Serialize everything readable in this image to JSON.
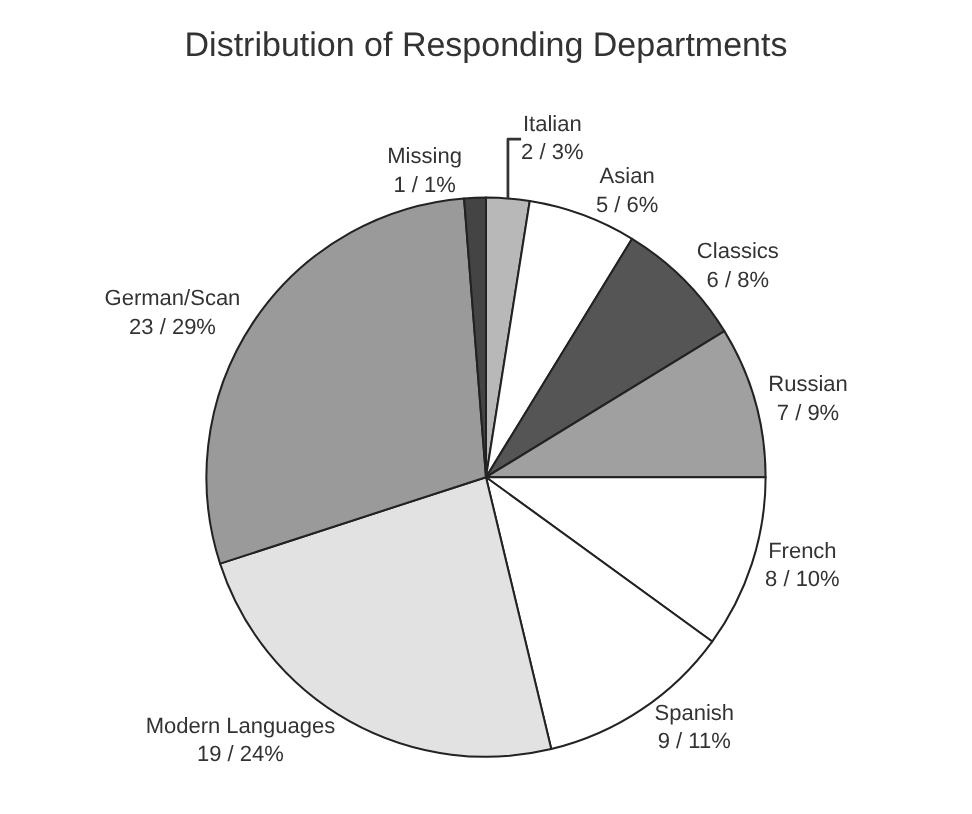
{
  "chart_data": {
    "type": "pie",
    "title": "Distribution of Responding Departments",
    "categories": [
      "Italian",
      "Asian",
      "Classics",
      "Russian",
      "French",
      "Spanish",
      "Modern Languages",
      "German/Scan",
      "Missing"
    ],
    "values": [
      2,
      5,
      6,
      7,
      8,
      9,
      19,
      23,
      1
    ],
    "value_labels": [
      "2 / 3%",
      "5 / 6%",
      "6 / 8%",
      "7 / 9%",
      "8 / 10%",
      "9 / 11%",
      "19 / 24%",
      "23 / 29%",
      "1 / 1%"
    ],
    "colors": [
      "#b8b8b8",
      "#ffffff",
      "#555555",
      "#a0a0a0",
      "#ffffff",
      "#ffffff",
      "#e2e2e2",
      "#9a9a9a",
      "#444444"
    ],
    "legend": false
  }
}
